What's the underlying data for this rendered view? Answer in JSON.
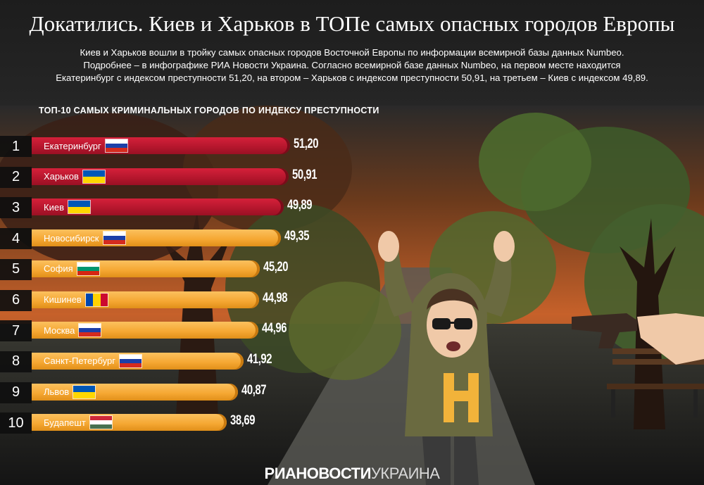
{
  "header": {
    "title": "Докатились. Киев и Харьков в ТОПе самых опасных городов Европы",
    "subtitle_lines": [
      "Киев и Харьков вошли в тройку самых опасных городов Восточной Европы по информации всемирной базы данных Numbeo.",
      "Подробнее – в инфографике РИА Новости Украина. Согласно всемирной базе данных Numbeo, на первом месте находится",
      "Екатеринбург с индексом преступности 51,20, на втором – Харьков с индексом преступности 50,91, на третьем – Киев с индексом 49,89."
    ]
  },
  "chart_data": {
    "type": "bar",
    "title": "ТОП-10 САМЫХ КРИМИНАЛЬНЫХ ГОРОДОВ ПО ИНДЕКСУ ПРЕСТУПНОСТИ",
    "orientation": "horizontal",
    "categories": [
      "Екатеринбург",
      "Харьков",
      "Киев",
      "Новосибирск",
      "София",
      "Кишинев",
      "Москва",
      "Санкт-Петербург",
      "Львов",
      "Будапешт"
    ],
    "ranks": [
      "1",
      "2",
      "3",
      "4",
      "5",
      "6",
      "7",
      "8",
      "9",
      "10"
    ],
    "values": [
      51.2,
      50.91,
      49.89,
      49.35,
      45.2,
      44.98,
      44.96,
      41.92,
      40.87,
      38.69
    ],
    "value_labels": [
      "51,20",
      "50,91",
      "49,89",
      "49,35",
      "45,20",
      "44,98",
      "44,96",
      "41,92",
      "40,87",
      "38,69"
    ],
    "flags": [
      "russia",
      "ukraine",
      "ukraine",
      "russia",
      "bulgaria",
      "moldova",
      "russia",
      "russia",
      "ukraine",
      "hungary"
    ],
    "bar_colors": [
      "#c41a32",
      "#c41a32",
      "#c41a32",
      "#f5a631",
      "#f5a631",
      "#f5a631",
      "#f5a631",
      "#f5a631",
      "#f5a631",
      "#f5a631"
    ]
  },
  "brand": {
    "logo_bold": "РИАНОВОСТИ",
    "logo_light": "УКРАИНА"
  }
}
